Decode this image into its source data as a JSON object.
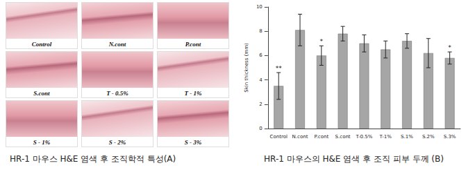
{
  "panel_a": {
    "images": [
      "Control",
      "N.cont",
      "P.cont",
      "S.cont",
      "T - 0.5%",
      "T - 1%",
      "S - 1%",
      "S - 2%",
      "S - 3%"
    ],
    "caption": "HR-1 마우스 H&E 염색 후 조직학적 특성(A)"
  },
  "panel_b": {
    "caption": "HR-1 마우스의 H&E 염색 후 조직 피부 두께 (B)"
  },
  "chart_data": {
    "type": "bar",
    "y_label": "Skin thickness (mm)",
    "categories": [
      "Control",
      "N.cont",
      "P.cont",
      "S.cont",
      "T-0.5%",
      "T-1%",
      "S.1%",
      "S.2%",
      "S.3%"
    ],
    "values": [
      3.5,
      8.1,
      6.0,
      7.8,
      7.0,
      6.5,
      7.2,
      6.2,
      5.8
    ],
    "errors": [
      1.1,
      1.3,
      0.8,
      0.6,
      0.7,
      0.7,
      0.6,
      1.2,
      0.5
    ],
    "significance": [
      "**",
      null,
      "*",
      null,
      null,
      null,
      null,
      null,
      "*"
    ],
    "color": "#a6a6a6",
    "ylim": [
      0,
      10
    ],
    "yticks": [
      0,
      2,
      4,
      6,
      8,
      10
    ],
    "grid": false
  }
}
